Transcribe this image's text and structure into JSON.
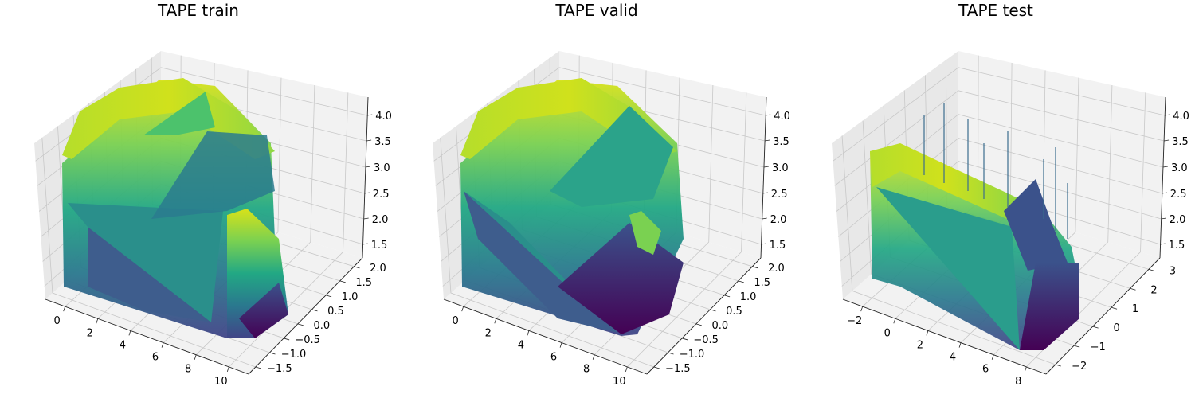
{
  "chart_data": [
    {
      "type": "surface",
      "title": "TAPE train",
      "colormap": "viridis",
      "x_ticks": [
        "0",
        "2",
        "4",
        "6",
        "8",
        "10"
      ],
      "y_ticks": [
        "−1.5",
        "−1.0",
        "−0.5",
        "0.0",
        "0.5",
        "1.0",
        "1.5",
        "2.0"
      ],
      "z_ticks": [
        "1.5",
        "2.0",
        "2.5",
        "3.0",
        "3.5",
        "4.0"
      ],
      "xlim": [
        -1.5,
        11
      ],
      "ylim": [
        -1.7,
        2.3
      ],
      "zlim": [
        1.3,
        4.1
      ],
      "grid": true
    },
    {
      "type": "surface",
      "title": "TAPE valid",
      "colormap": "viridis",
      "x_ticks": [
        "0",
        "2",
        "4",
        "6",
        "8",
        "10"
      ],
      "y_ticks": [
        "−1.5",
        "−1.0",
        "−0.5",
        "0.0",
        "0.5",
        "1.0",
        "1.5",
        "2.0"
      ],
      "z_ticks": [
        "1.5",
        "2.0",
        "2.5",
        "3.0",
        "3.5",
        "4.0"
      ],
      "xlim": [
        -1.5,
        11
      ],
      "ylim": [
        -1.7,
        2.3
      ],
      "zlim": [
        1.3,
        4.1
      ],
      "grid": true
    },
    {
      "type": "surface",
      "title": "TAPE test",
      "colormap": "viridis",
      "x_ticks": [
        "−2",
        "0",
        "2",
        "4",
        "6",
        "8"
      ],
      "y_ticks": [
        "−2",
        "−1",
        "0",
        "1",
        "2",
        "3"
      ],
      "z_ticks": [
        "1.5",
        "2.0",
        "2.5",
        "3.0",
        "3.5",
        "4.0"
      ],
      "xlim": [
        -3,
        9
      ],
      "ylim": [
        -2.3,
        3.6
      ],
      "zlim": [
        1.3,
        4.1
      ],
      "grid": true
    }
  ]
}
